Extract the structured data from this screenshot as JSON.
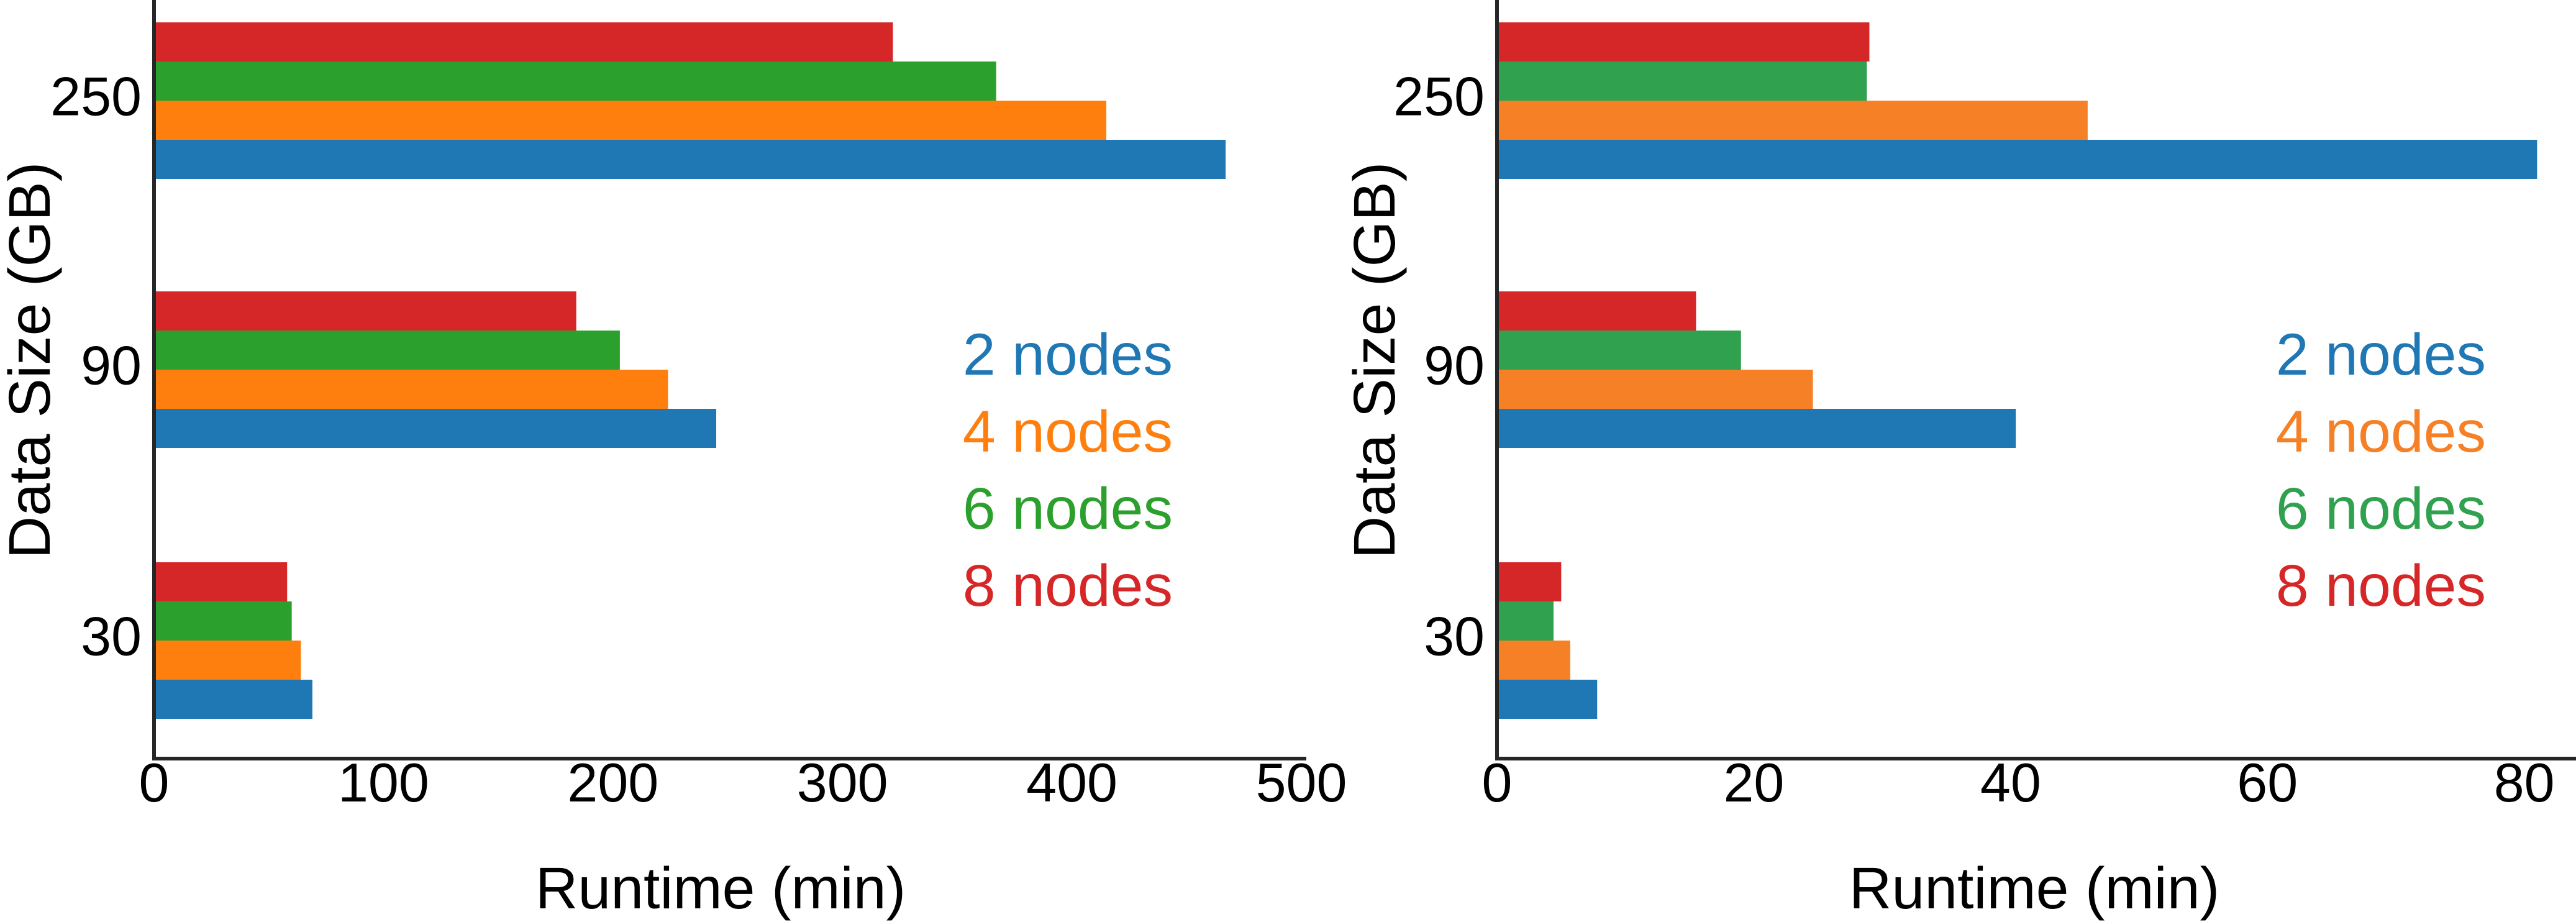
{
  "chart_data": [
    {
      "type": "bar",
      "orientation": "horizontal",
      "title": "",
      "xlabel": "Runtime (min)",
      "ylabel": "Data Size (GB)",
      "xlim": [
        0,
        500
      ],
      "xticks": [
        "0",
        "100",
        "200",
        "300",
        "400",
        "500"
      ],
      "categories": [
        "30",
        "90",
        "250"
      ],
      "series": [
        {
          "name": "2 nodes",
          "color": "#1f77b4",
          "values": [
            69,
            245,
            467
          ]
        },
        {
          "name": "4 nodes",
          "color": "#ff7f0e",
          "values": [
            64,
            224,
            415
          ]
        },
        {
          "name": "6 nodes",
          "color": "#2ca02c",
          "values": [
            60,
            203,
            367
          ]
        },
        {
          "name": "8 nodes",
          "color": "#d62728",
          "values": [
            58,
            184,
            322
          ]
        }
      ],
      "legend_position": "center-right",
      "grid": false
    },
    {
      "type": "bar",
      "orientation": "horizontal",
      "title": "",
      "xlabel": "Runtime (min)",
      "ylabel": "Data Size (GB)",
      "xlim": [
        0,
        82
      ],
      "xticks": [
        "0",
        "20",
        "40",
        "60",
        "80"
      ],
      "categories": [
        "30",
        "90",
        "250"
      ],
      "series": [
        {
          "name": "2 nodes",
          "color": "#1f77b4",
          "values": [
            7.8,
            40.4,
            81.0
          ]
        },
        {
          "name": "4 nodes",
          "color": "#f58025",
          "values": [
            5.7,
            24.6,
            46.0
          ]
        },
        {
          "name": "6 nodes",
          "color": "#30a14e",
          "values": [
            4.4,
            19.0,
            28.8
          ]
        },
        {
          "name": "8 nodes",
          "color": "#d62728",
          "values": [
            5.0,
            15.5,
            29.0
          ]
        }
      ],
      "legend_position": "center-right",
      "grid": false
    }
  ]
}
